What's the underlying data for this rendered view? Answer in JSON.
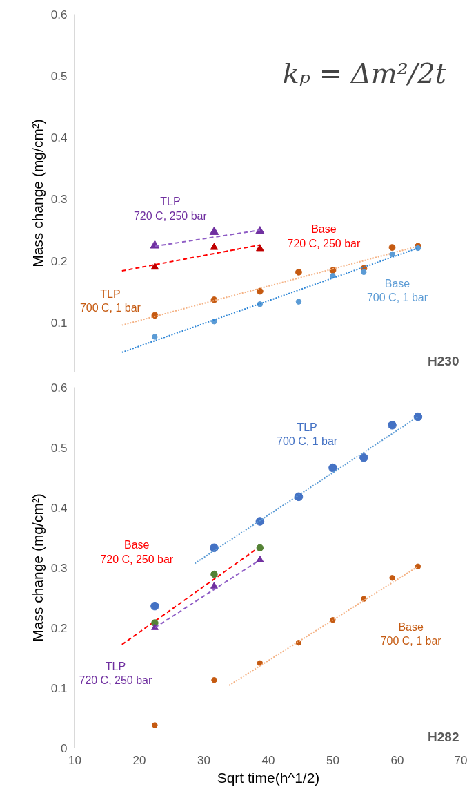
{
  "chart_data": [
    {
      "type": "scatter",
      "title": "H230",
      "ylabel": "Mass change (mg/cm²)",
      "xlim": [
        10,
        70
      ],
      "ylim": [
        0.02,
        0.6
      ],
      "yticks": [
        0.1,
        0.2,
        0.3,
        0.4,
        0.5,
        0.6
      ],
      "tick_labels": "y",
      "annotations": [
        "kₚ = Δm²/2t"
      ],
      "series": [
        {
          "name": "TLP\n720 C, 250 bar",
          "color": "#7030a0",
          "marker": "triangle",
          "x": [
            22.4,
            31.6,
            38.7
          ],
          "values": [
            0.225,
            0.247,
            0.248
          ]
        },
        {
          "type": "line",
          "color": "#8e5cc5",
          "line_style": "dashed",
          "marker": "none",
          "x": [
            22.4,
            38.7
          ],
          "values": [
            0.224,
            0.25
          ]
        },
        {
          "name": "Base\n720 C, 250 bar",
          "color": "#ff0000",
          "type": "line",
          "line_style": "dashed",
          "marker": "none",
          "x": [
            17.3,
            38.7
          ],
          "values": [
            0.184,
            0.226
          ]
        },
        {
          "color": "#c00000",
          "marker": "triangle",
          "x": [
            22.4,
            31.6,
            38.7
          ],
          "values": [
            0.19,
            0.222,
            0.22
          ]
        },
        {
          "name": "TLP\n700 C, 1 bar",
          "color": "#c55a11",
          "marker": "circle",
          "x": [
            22.4,
            31.6,
            38.7,
            44.7,
            50,
            54.8,
            59.2,
            63.2
          ],
          "values": [
            0.112,
            0.137,
            0.151,
            0.182,
            0.185,
            0.188,
            0.222,
            0.224
          ]
        },
        {
          "type": "line",
          "color": "#f4b183",
          "line_style": "dotted",
          "marker": "none",
          "x": [
            17.3,
            63.2
          ],
          "values": [
            0.096,
            0.224
          ]
        },
        {
          "name": "Base\n700 C, 1 bar",
          "color": "#5b9bd5",
          "marker": "circle",
          "x": [
            22.4,
            31.6,
            38.7,
            44.7,
            50,
            54.8,
            59.2,
            63.2
          ],
          "values": [
            0.077,
            0.102,
            0.13,
            0.134,
            0.176,
            0.182,
            0.211,
            0.221
          ]
        },
        {
          "type": "line",
          "color": "#2e86d6",
          "line_style": "dotted",
          "marker": "none",
          "x": [
            17.3,
            63.2
          ],
          "values": [
            0.052,
            0.221
          ]
        }
      ]
    },
    {
      "type": "scatter",
      "title": "H282",
      "ylabel": "Mass change (mg/cm²)",
      "xlabel": "Sqrt time(h^1/2)",
      "xlim": [
        10,
        70
      ],
      "xticks": [
        10,
        20,
        30,
        40,
        50,
        60,
        70
      ],
      "ylim": [
        0,
        0.6
      ],
      "yticks": [
        0,
        0.1,
        0.2,
        0.3,
        0.4,
        0.5,
        0.6
      ],
      "series": [
        {
          "name": "TLP\n700 C, 1 bar",
          "color": "#4472c4",
          "marker": "circle",
          "x": [
            22.4,
            31.6,
            38.7,
            44.7,
            50,
            54.8,
            59.2,
            63.2
          ],
          "values": [
            0.236,
            0.333,
            0.377,
            0.418,
            0.466,
            0.483,
            0.537,
            0.551
          ]
        },
        {
          "type": "line",
          "color": "#5b9bd5",
          "line_style": "dotted",
          "marker": "none",
          "x": [
            28.6,
            63.2
          ],
          "values": [
            0.307,
            0.551
          ]
        },
        {
          "name": "Base\n720 C, 250 bar",
          "color": "#ff0000",
          "type": "line",
          "line_style": "dashed",
          "marker": "none",
          "x": [
            17.3,
            38.7
          ],
          "values": [
            0.172,
            0.335
          ]
        },
        {
          "color": "#548235",
          "marker": "circle",
          "x": [
            22.4,
            31.6,
            38.7
          ],
          "values": [
            0.208,
            0.289,
            0.333
          ]
        },
        {
          "name": "TLP\n720 C, 250 bar",
          "color": "#7030a0",
          "marker": "triangle",
          "x": [
            22.4,
            31.6,
            38.7
          ],
          "values": [
            0.2,
            0.269,
            0.313
          ]
        },
        {
          "type": "line",
          "color": "#8e5cc5",
          "line_style": "dashed",
          "marker": "none",
          "x": [
            22.4,
            38.7
          ],
          "values": [
            0.2,
            0.313
          ]
        },
        {
          "name": "Base\n700 C, 1 bar",
          "color": "#c55a11",
          "marker": "circle",
          "x": [
            22.4,
            31.6,
            38.7,
            44.7,
            50,
            54.8,
            59.2,
            63.2
          ],
          "values": [
            0.038,
            0.113,
            0.141,
            0.175,
            0.213,
            0.248,
            0.283,
            0.302
          ]
        },
        {
          "type": "line",
          "color": "#f4b183",
          "line_style": "dotted",
          "marker": "none",
          "x": [
            33.9,
            63.2
          ],
          "values": [
            0.104,
            0.302
          ]
        }
      ]
    }
  ]
}
